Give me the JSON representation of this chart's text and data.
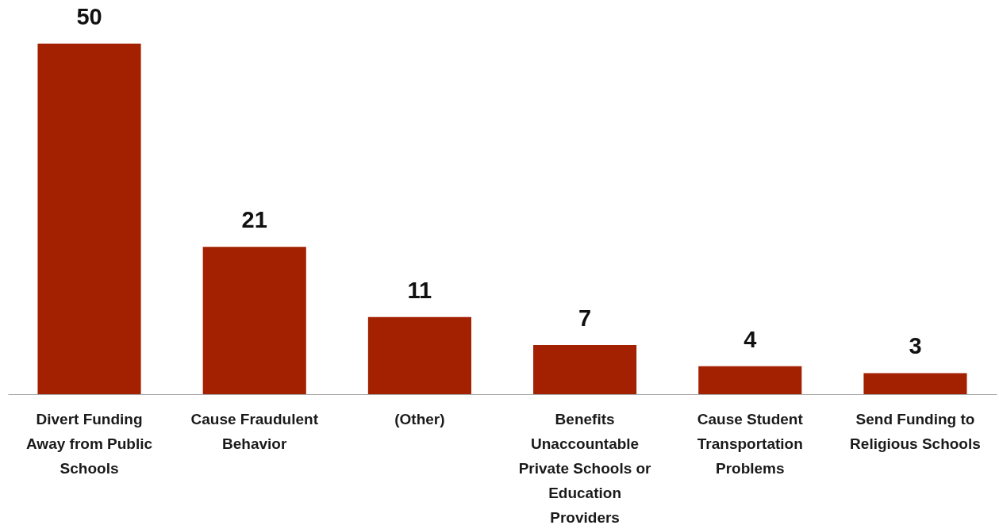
{
  "chart_data": {
    "type": "bar",
    "categories": [
      "Divert Funding Away from Public Schools",
      "Cause Fraudulent Behavior",
      "(Other)",
      "Benefits Unaccountable Private Schools or Education Providers",
      "Cause Student Transportation Problems",
      "Send Funding to Religious Schools"
    ],
    "values": [
      50,
      21,
      11,
      7,
      4,
      3
    ],
    "color": "#a32000",
    "data_labels": true
  }
}
